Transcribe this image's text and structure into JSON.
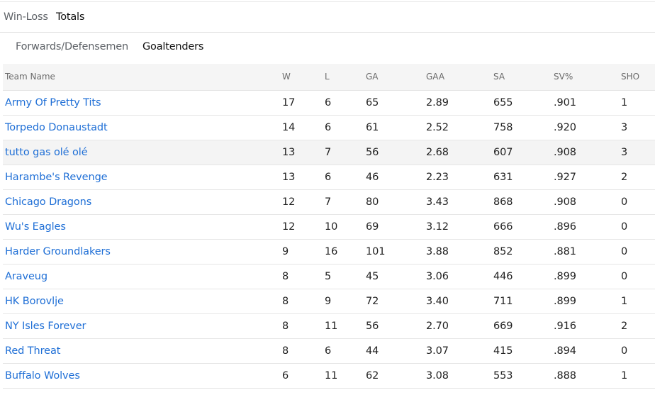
{
  "tabs": {
    "primary": [
      "Win-Loss",
      "Totals"
    ],
    "primary_active": "Totals",
    "secondary": [
      "Forwards/Defensemen",
      "Goaltenders"
    ],
    "secondary_active": "Goaltenders"
  },
  "table": {
    "columns": [
      "Team Name",
      "W",
      "L",
      "GA",
      "GAA",
      "SA",
      "SV%",
      "SHO"
    ],
    "rows": [
      [
        "Army Of Pretty Tits",
        "17",
        "6",
        "65",
        "2.89",
        "655",
        ".901",
        "1"
      ],
      [
        "Torpedo Donaustadt",
        "14",
        "6",
        "61",
        "2.52",
        "758",
        ".920",
        "3"
      ],
      [
        "tutto gas olé olé",
        "13",
        "7",
        "56",
        "2.68",
        "607",
        ".908",
        "3"
      ],
      [
        "Harambe's Revenge",
        "13",
        "6",
        "46",
        "2.23",
        "631",
        ".927",
        "2"
      ],
      [
        "Chicago Dragons",
        "12",
        "7",
        "80",
        "3.43",
        "868",
        ".908",
        "0"
      ],
      [
        "Wu's Eagles",
        "12",
        "10",
        "69",
        "3.12",
        "666",
        ".896",
        "0"
      ],
      [
        "Harder Groundlakers",
        "9",
        "16",
        "101",
        "3.88",
        "852",
        ".881",
        "0"
      ],
      [
        "Araveug",
        "8",
        "5",
        "45",
        "3.06",
        "446",
        ".899",
        "0"
      ],
      [
        "HK Borovlje",
        "8",
        "9",
        "72",
        "3.40",
        "711",
        ".899",
        "1"
      ],
      [
        "NY Isles Forever",
        "8",
        "11",
        "56",
        "2.70",
        "669",
        ".916",
        "2"
      ],
      [
        "Red Threat",
        "8",
        "6",
        "44",
        "3.07",
        "415",
        ".894",
        "0"
      ],
      [
        "Buffalo Wolves",
        "6",
        "11",
        "62",
        "3.08",
        "553",
        ".888",
        "1"
      ]
    ]
  },
  "colors": {
    "link": "#1f6fd6",
    "header_bg": "#f5f5f5",
    "row_highlight": "#f4f4f4"
  }
}
